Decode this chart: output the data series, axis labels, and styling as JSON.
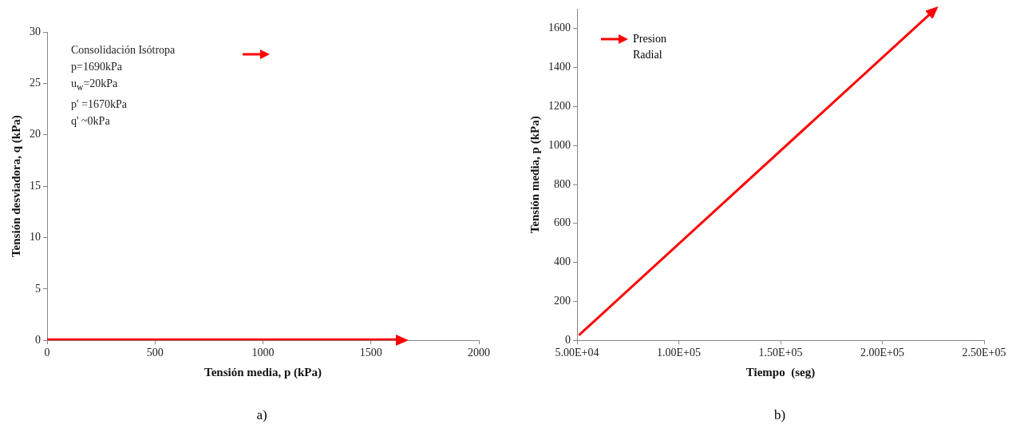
{
  "chart_data": [
    {
      "type": "line",
      "xlabel": "Tensión media, p (kPa)",
      "ylabel": "Tensión desviadora, q (kPa)",
      "series": [
        {
          "color": "#ff0000",
          "x": [
            0,
            1640
          ],
          "values": [
            0,
            0
          ]
        }
      ],
      "xlim": [
        0,
        2000
      ],
      "xticks": [
        0,
        500,
        1000,
        1500,
        2000
      ],
      "ylim": [
        0,
        30
      ],
      "yticks": [
        0,
        5,
        10,
        15,
        20,
        25,
        30
      ],
      "grid": false,
      "legend": false,
      "line_style": "solid",
      "annotations": [
        "Consolidación Isótropa",
        "p=1690kPa",
        "u$_{w}$=20kPa",
        "p' =1670kPa",
        "q' ~0kPa",
        "a)"
      ]
    },
    {
      "type": "line",
      "xlabel": "Tiempo  (seg)",
      "ylabel": "Tensión media, p (kPa)",
      "series": [
        {
          "name": "Presion Radial",
          "color": "#ff0000",
          "x": [
            51300,
            225000
          ],
          "values": [
            30,
            1690
          ]
        }
      ],
      "xlim": [
        50000,
        250000
      ],
      "xticks": [
        {
          "value": 50000,
          "label": "5.00E+04"
        },
        {
          "value": 100000,
          "label": "1.00E+05"
        },
        {
          "value": 150000,
          "label": "1.50E+05"
        },
        {
          "value": 200000,
          "label": "2.00E+05"
        },
        {
          "value": 250000,
          "label": "2.50E+05"
        }
      ],
      "ylim": [
        0,
        1700
      ],
      "yticks": [
        0,
        200,
        400,
        600,
        800,
        1000,
        1200,
        1400,
        1600
      ],
      "grid": false,
      "legend": "top left",
      "line_style": "solid",
      "annotations": [
        "b)"
      ]
    }
  ]
}
